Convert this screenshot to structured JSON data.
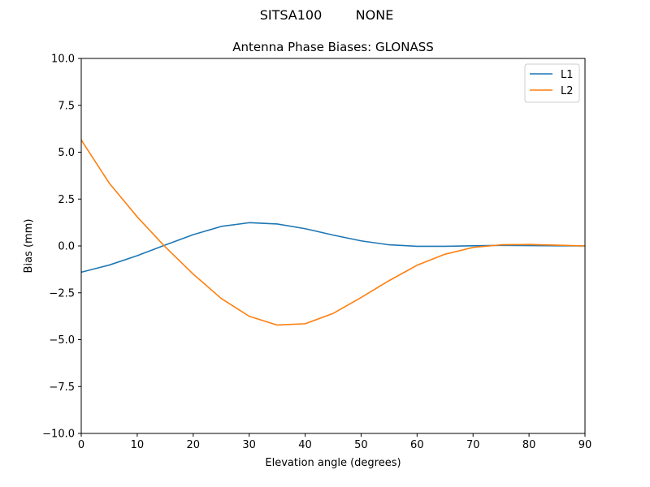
{
  "figure": {
    "suptitle_left": "SITSA100",
    "suptitle_right": "NONE"
  },
  "chart_data": {
    "type": "line",
    "title": "Antenna Phase Biases: GLONASS",
    "xlabel": "Elevation angle (degrees)",
    "ylabel": "Bias (mm)",
    "xlim": [
      0,
      90
    ],
    "ylim": [
      -10,
      10
    ],
    "xticks": [
      0,
      10,
      20,
      30,
      40,
      50,
      60,
      70,
      80,
      90
    ],
    "xtick_labels": [
      "0",
      "10",
      "20",
      "30",
      "40",
      "50",
      "60",
      "70",
      "80",
      "90"
    ],
    "yticks": [
      -10,
      -7.5,
      -5,
      -2.5,
      0,
      2.5,
      5,
      7.5,
      10
    ],
    "ytick_labels": [
      "−10.0",
      "−7.5",
      "−5.0",
      "−2.5",
      "0.0",
      "2.5",
      "5.0",
      "7.5",
      "10.0"
    ],
    "grid": false,
    "legend_position": "top-right",
    "x": [
      0,
      5,
      10,
      15,
      20,
      25,
      30,
      35,
      40,
      45,
      50,
      55,
      60,
      65,
      70,
      75,
      80,
      85,
      90
    ],
    "series": [
      {
        "name": "L1",
        "color": "#1f77b4",
        "values": [
          -1.4,
          -1.02,
          -0.52,
          0.05,
          0.6,
          1.04,
          1.24,
          1.17,
          0.92,
          0.58,
          0.27,
          0.06,
          -0.02,
          -0.02,
          0.01,
          0.03,
          0.02,
          0.01,
          0.0
        ]
      },
      {
        "name": "L2",
        "color": "#ff7f0e",
        "values": [
          5.65,
          3.35,
          1.55,
          -0.05,
          -1.5,
          -2.8,
          -3.75,
          -4.22,
          -4.15,
          -3.6,
          -2.75,
          -1.85,
          -1.03,
          -0.44,
          -0.08,
          0.06,
          0.08,
          0.04,
          0.0
        ]
      }
    ]
  }
}
